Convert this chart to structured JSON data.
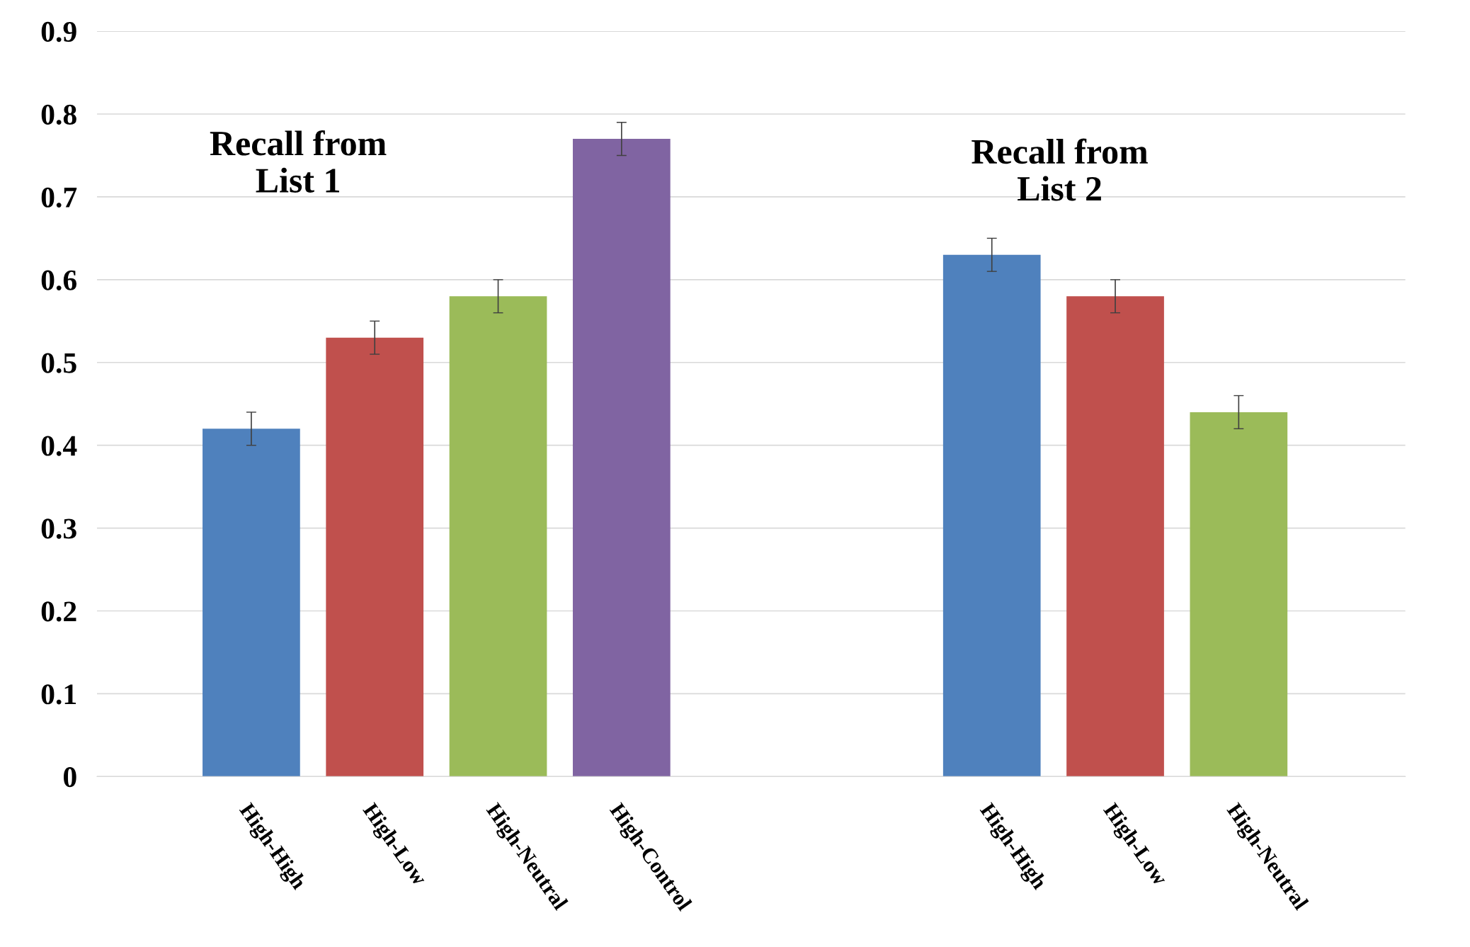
{
  "chart_data": {
    "type": "bar",
    "categories": [
      "High-High",
      "High-Low",
      "High-Neutral",
      "High-Control",
      null,
      null,
      "High-High",
      "High-Low",
      "High-Neutral"
    ],
    "values": [
      0.42,
      0.53,
      0.58,
      0.77,
      null,
      null,
      0.63,
      0.58,
      0.44
    ],
    "errors": [
      0.02,
      0.02,
      0.02,
      0.02,
      null,
      null,
      0.02,
      0.02,
      0.02
    ],
    "colors": [
      "#4f81bd",
      "#c0504d",
      "#9bbb59",
      "#8064a2",
      "#ffffff",
      "#ffffff",
      "#4f81bd",
      "#c0504d",
      "#9bbb59"
    ],
    "ylim": [
      0,
      0.9
    ],
    "yticks": [
      0,
      0.1,
      0.2,
      0.3,
      0.4,
      0.5,
      0.6,
      0.7,
      0.8,
      0.9
    ],
    "grid": "y",
    "annotations": [
      "Recall from\nList 1",
      "Recall from\nList 2"
    ]
  }
}
